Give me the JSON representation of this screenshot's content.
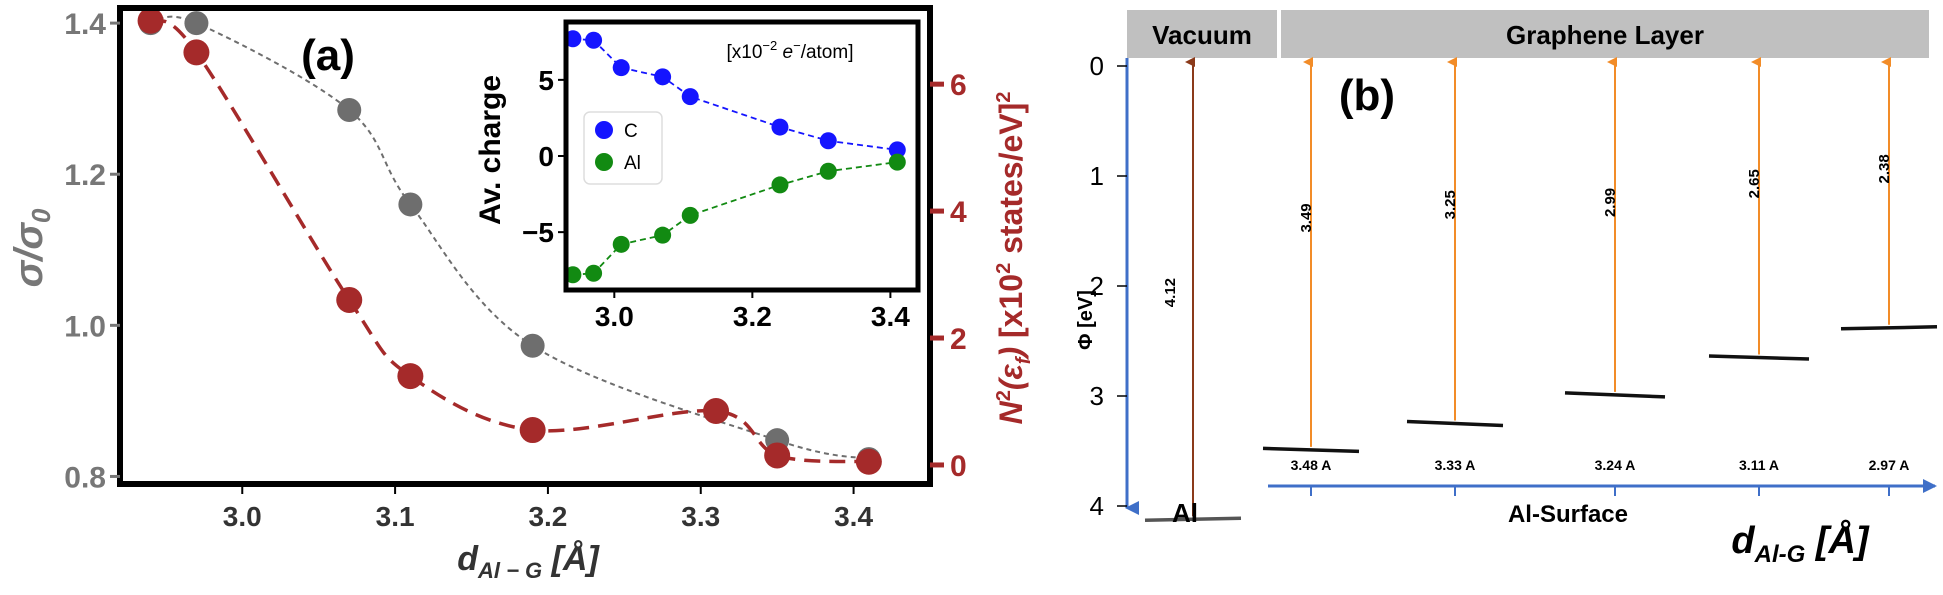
{
  "panels": {
    "a_label": "(a)",
    "b_label": "(b)"
  },
  "colors": {
    "gray": "#6e6e6e",
    "red": "#a52a2a",
    "blue": "#1515ff",
    "green": "#128a12",
    "orange": "#f28c28",
    "axis_blue": "#3f6fc8",
    "header_gray": "#c0c0c0"
  },
  "chart_data": [
    {
      "id": "main",
      "type": "scatter",
      "title": "",
      "xlabel": "d_{Al-G} [Å]",
      "ylabel_left": "σ/σ₀",
      "ylabel_right": "N²(ε_f) [x10² states/eV]²",
      "xlim": [
        2.92,
        3.45
      ],
      "ylim_left": [
        0.79,
        1.42
      ],
      "ylim_right": [
        -0.3,
        7.2
      ],
      "x_ticks": [
        3.0,
        3.1,
        3.2,
        3.3,
        3.4
      ],
      "x_tick_labels": [
        "3.0",
        "3.1",
        "3.2",
        "3.3",
        "3.4"
      ],
      "y_left_ticks": [
        0.8,
        1.0,
        1.2,
        1.4
      ],
      "y_left_tick_labels": [
        "0.8",
        "1.0",
        "1.2",
        "1.4"
      ],
      "y_right_ticks": [
        0,
        2,
        4,
        6
      ],
      "y_right_tick_labels": [
        "0",
        "2",
        "4",
        "6"
      ],
      "grid": false,
      "series": [
        {
          "axis": "left",
          "x": [
            2.94,
            2.97,
            3.07,
            3.11,
            3.19,
            3.35,
            3.41
          ],
          "y": [
            1.4,
            1.4,
            1.285,
            1.16,
            0.973,
            0.848,
            0.823
          ]
        },
        {
          "axis": "right",
          "x": [
            2.94,
            2.97,
            3.07,
            3.11,
            3.19,
            3.31,
            3.35,
            3.41
          ],
          "y": [
            7.0,
            6.5,
            2.6,
            1.4,
            0.55,
            0.85,
            0.15,
            0.05
          ]
        }
      ]
    },
    {
      "id": "inset",
      "type": "scatter",
      "title": "",
      "annotation": "[x10⁻² e⁻/atom]",
      "ylabel": "Av. charge",
      "xlim": [
        2.93,
        3.44
      ],
      "ylim": [
        -8.8,
        8.8
      ],
      "x_ticks": [
        3.0,
        3.2,
        3.4
      ],
      "x_tick_labels": [
        "3.0",
        "3.2",
        "3.4"
      ],
      "y_ticks": [
        -5,
        0,
        5
      ],
      "y_tick_labels": [
        "−5",
        "0",
        "5"
      ],
      "legend_position": "center-left",
      "series": [
        {
          "name": "C",
          "x": [
            2.94,
            2.97,
            3.01,
            3.07,
            3.11,
            3.24,
            3.31,
            3.41
          ],
          "y": [
            7.7,
            7.6,
            5.8,
            5.2,
            3.9,
            1.9,
            1.0,
            0.4
          ]
        },
        {
          "name": "Al",
          "x": [
            2.94,
            2.97,
            3.01,
            3.07,
            3.11,
            3.24,
            3.31,
            3.41
          ],
          "y": [
            -7.8,
            -7.7,
            -5.8,
            -5.2,
            -3.9,
            -1.9,
            -1.0,
            -0.4
          ]
        }
      ]
    },
    {
      "id": "panel_b",
      "type": "diagram",
      "title": "",
      "ylabel": "Φ [eV]",
      "xlabel": "d_{Al-G} [Å]",
      "ylim": [
        0,
        4.2
      ],
      "y_ticks": [
        0,
        1,
        2,
        3,
        4
      ],
      "y_tick_labels": [
        "0",
        "1",
        "2",
        "3",
        "4"
      ],
      "header_vacuum": "Vacuum",
      "header_graphene": "Graphene Layer",
      "al_label": "Al",
      "surface_label": "Al-Surface",
      "distance_labels": [
        "3.48 A",
        "3.33 A",
        "3.24 A",
        "3.11  A",
        "2.97 A"
      ],
      "levels": [
        {
          "work_function": 4.12,
          "label": "4.12"
        },
        {
          "work_function": 3.49,
          "label": "3.49"
        },
        {
          "work_function": 3.25,
          "label": "3.25"
        },
        {
          "work_function": 2.99,
          "label": "2.99"
        },
        {
          "work_function": 2.65,
          "label": "2.65"
        },
        {
          "work_function": 2.38,
          "label": "2.38"
        }
      ]
    }
  ]
}
